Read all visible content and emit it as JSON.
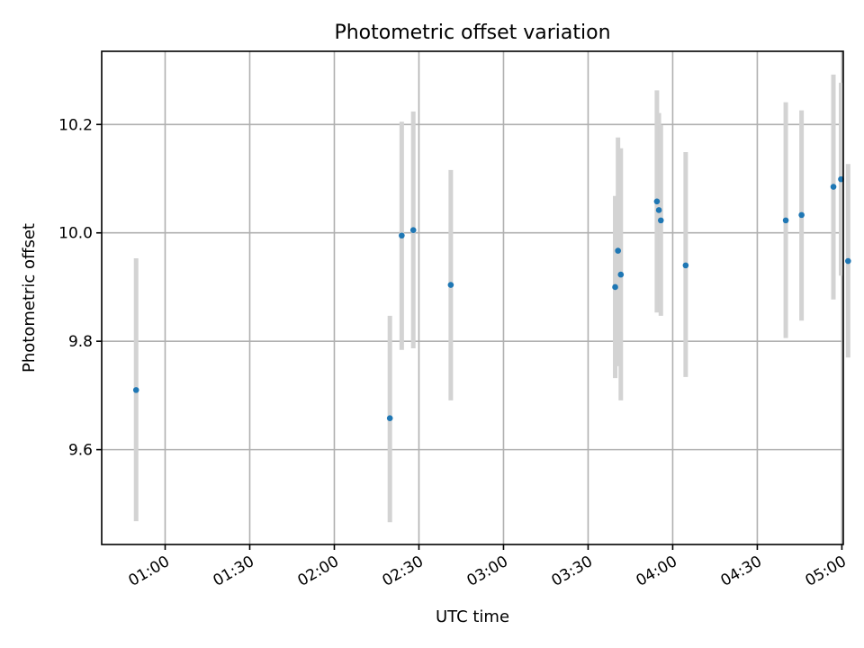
{
  "chart_data": {
    "type": "scatter",
    "title": "Photometric offset variation",
    "xlabel": "UTC time",
    "ylabel": "Photometric offset",
    "xlim_minutes": [
      37.5,
      300.5
    ],
    "ylim": [
      9.425,
      10.335
    ],
    "x_ticks": [
      {
        "minutes": 60,
        "label": "01:00"
      },
      {
        "minutes": 90,
        "label": "01:30"
      },
      {
        "minutes": 120,
        "label": "02:00"
      },
      {
        "minutes": 150,
        "label": "02:30"
      },
      {
        "minutes": 180,
        "label": "03:00"
      },
      {
        "minutes": 210,
        "label": "03:30"
      },
      {
        "minutes": 240,
        "label": "04:00"
      },
      {
        "minutes": 270,
        "label": "04:30"
      },
      {
        "minutes": 300,
        "label": "05:00"
      }
    ],
    "y_ticks": [
      {
        "value": 9.6,
        "label": "9.6"
      },
      {
        "value": 9.8,
        "label": "9.8"
      },
      {
        "value": 10.0,
        "label": "10.0"
      },
      {
        "value": 10.2,
        "label": "10.2"
      }
    ],
    "grid": true,
    "marker_color": "#1f77b4",
    "errorbar_color": "#d3d3d3",
    "points": [
      {
        "t": 49.7,
        "y": 9.71,
        "lo": 9.468,
        "hi": 9.953
      },
      {
        "t": 139.7,
        "y": 9.658,
        "lo": 9.466,
        "hi": 9.847
      },
      {
        "t": 143.9,
        "y": 9.995,
        "lo": 9.784,
        "hi": 10.205
      },
      {
        "t": 148.0,
        "y": 10.005,
        "lo": 9.787,
        "hi": 10.224
      },
      {
        "t": 161.3,
        "y": 9.904,
        "lo": 9.691,
        "hi": 10.116
      },
      {
        "t": 219.6,
        "y": 9.9,
        "lo": 9.732,
        "hi": 10.068
      },
      {
        "t": 220.6,
        "y": 9.967,
        "lo": 9.754,
        "hi": 10.176
      },
      {
        "t": 221.6,
        "y": 9.923,
        "lo": 9.691,
        "hi": 10.156
      },
      {
        "t": 234.4,
        "y": 10.058,
        "lo": 9.853,
        "hi": 10.263
      },
      {
        "t": 235.1,
        "y": 10.042,
        "lo": 9.863,
        "hi": 10.221
      },
      {
        "t": 235.8,
        "y": 10.023,
        "lo": 9.847,
        "hi": 10.199
      },
      {
        "t": 244.6,
        "y": 9.94,
        "lo": 9.734,
        "hi": 10.149
      },
      {
        "t": 280.1,
        "y": 10.023,
        "lo": 9.806,
        "hi": 10.241
      },
      {
        "t": 285.7,
        "y": 10.033,
        "lo": 9.838,
        "hi": 10.226
      },
      {
        "t": 297.0,
        "y": 10.085,
        "lo": 9.877,
        "hi": 10.292
      },
      {
        "t": 299.7,
        "y": 10.099,
        "lo": 9.921,
        "hi": 10.277
      },
      {
        "t": 302.2,
        "y": 9.948,
        "lo": 9.77,
        "hi": 10.127
      }
    ]
  }
}
